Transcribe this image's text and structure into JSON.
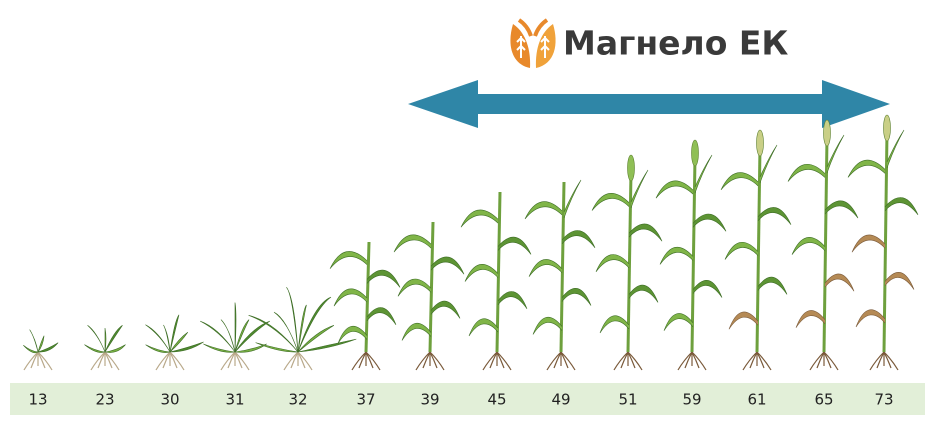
{
  "product": {
    "name": "Магнело ЕК"
  },
  "stages": [
    "13",
    "23",
    "30",
    "31",
    "32",
    "37",
    "39",
    "45",
    "49",
    "51",
    "59",
    "61",
    "65",
    "73"
  ]
}
